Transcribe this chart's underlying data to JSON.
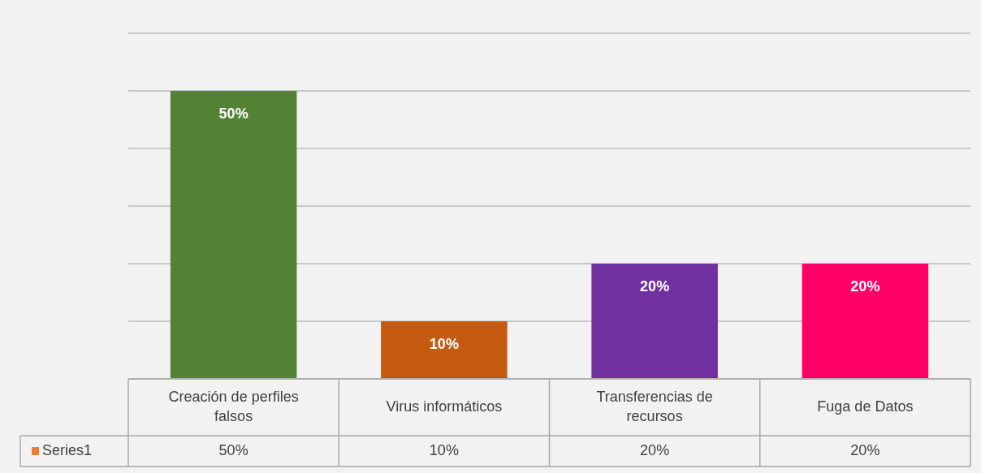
{
  "chart_data": {
    "type": "bar",
    "categories": [
      "Creación de perfiles falsos",
      "Virus informáticos",
      "Transferencias de recursos",
      "Fuga de Datos"
    ],
    "series": [
      {
        "name": "Series1",
        "color": "#ed7d31",
        "colors": [
          "#548235",
          "#c55a11",
          "#7030a0",
          "#ff0066"
        ],
        "values": [
          50,
          10,
          20,
          20
        ],
        "value_labels": [
          "50%",
          "10%",
          "20%",
          "20%"
        ]
      }
    ],
    "ylim": [
      0,
      60
    ],
    "yticks": [
      {
        "value": 0,
        "label": null
      },
      {
        "value": 10,
        "label": null
      },
      {
        "value": 20,
        "label": null
      },
      {
        "value": 30,
        "label": null
      },
      {
        "value": 40,
        "label": null
      },
      {
        "value": 50,
        "label": null
      },
      {
        "value": 60,
        "label": null
      }
    ],
    "grid": "y",
    "legend": "bottom",
    "tick_labels": "x"
  }
}
